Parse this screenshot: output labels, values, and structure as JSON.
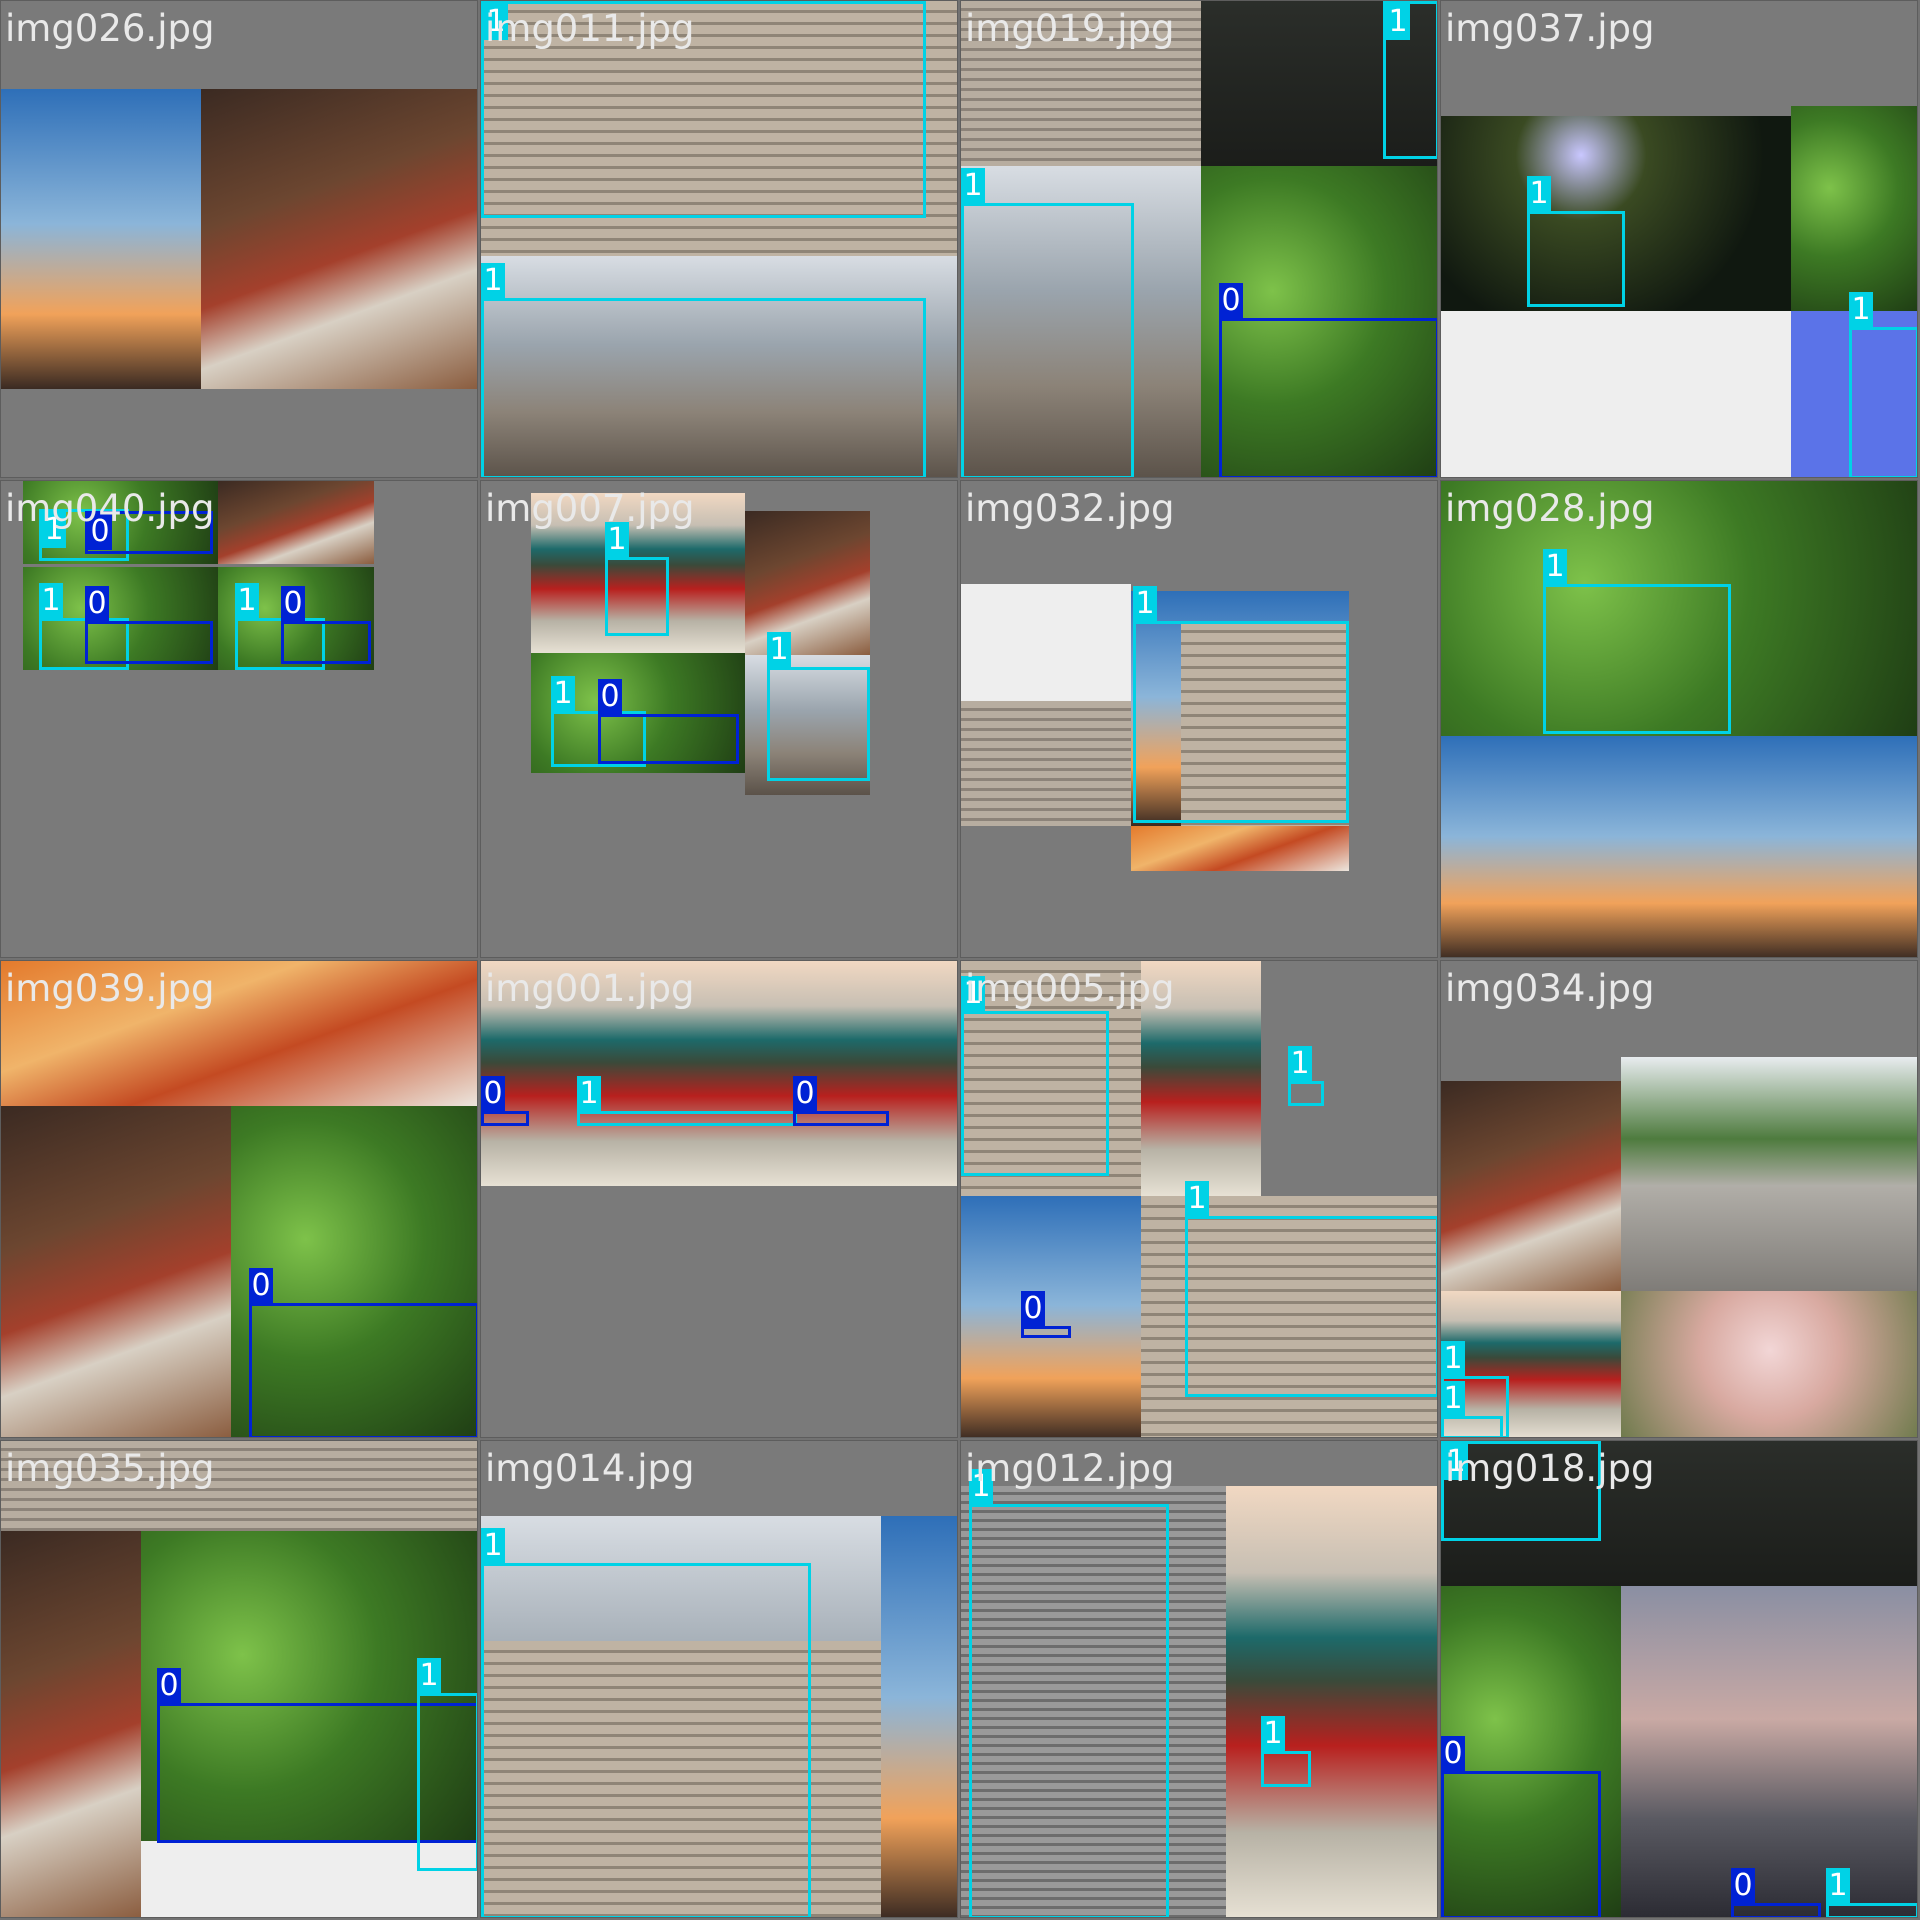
{
  "colors": {
    "class0": "#0022d4",
    "class1": "#00d2e6",
    "label_text": "#ffffff",
    "filename_text": "#e9e9e9",
    "padding_gray": "#7a7a7a"
  },
  "tiles": [
    {
      "name": "img026.jpg",
      "photos": [
        {
          "tex": "p-sky",
          "r": [
            0,
            88,
            478,
            300
          ]
        },
        {
          "tex": "p-hanok",
          "r": [
            200,
            88,
            278,
            300
          ]
        }
      ],
      "boxes": []
    },
    {
      "name": "img011.jpg",
      "photos": [
        {
          "tex": "p-stairs",
          "r": [
            0,
            0,
            478,
            255
          ]
        },
        {
          "tex": "p-street",
          "r": [
            0,
            255,
            478,
            223
          ]
        }
      ],
      "boxes": [
        {
          "c": "1",
          "r": [
            0,
            0,
            445,
            217
          ]
        },
        {
          "c": "1",
          "r": [
            0,
            297,
            445,
            181
          ]
        }
      ]
    },
    {
      "name": "img019.jpg",
      "photos": [
        {
          "tex": "p-stone",
          "r": [
            0,
            0,
            240,
            165
          ]
        },
        {
          "tex": "p-dark",
          "r": [
            240,
            0,
            238,
            165
          ]
        },
        {
          "tex": "p-street",
          "r": [
            0,
            165,
            240,
            313
          ]
        },
        {
          "tex": "p-green",
          "r": [
            240,
            165,
            238,
            313
          ]
        }
      ],
      "boxes": [
        {
          "c": "1",
          "r": [
            422,
            0,
            56,
            158
          ]
        },
        {
          "c": "1",
          "r": [
            0,
            202,
            173,
            276
          ]
        },
        {
          "c": "0",
          "r": [
            258,
            317,
            220,
            161
          ]
        }
      ]
    },
    {
      "name": "img037.jpg",
      "photos": [
        {
          "tex": "p-night",
          "r": [
            0,
            115,
            350,
            195
          ]
        },
        {
          "tex": "p-green",
          "r": [
            350,
            105,
            128,
            205
          ]
        },
        {
          "tex": "p-white",
          "r": [
            0,
            310,
            350,
            168
          ]
        },
        {
          "tex": "p-blue",
          "r": [
            350,
            310,
            128,
            168
          ]
        }
      ],
      "boxes": [
        {
          "c": "1",
          "r": [
            86,
            210,
            98,
            96
          ]
        },
        {
          "c": "1",
          "r": [
            408,
            326,
            70,
            152
          ]
        }
      ]
    },
    {
      "name": "img040.jpg",
      "photos": [
        {
          "tex": "p-green",
          "r": [
            22,
            0,
            195,
            83
          ]
        },
        {
          "tex": "p-hanok",
          "r": [
            217,
            0,
            156,
            83
          ]
        },
        {
          "tex": "p-green",
          "r": [
            22,
            86,
            195,
            103
          ]
        },
        {
          "tex": "p-green",
          "r": [
            217,
            86,
            156,
            103
          ]
        }
      ],
      "boxes": [
        {
          "c": "1",
          "r": [
            38,
            28,
            90,
            52
          ]
        },
        {
          "c": "0",
          "r": [
            84,
            30,
            128,
            43
          ]
        },
        {
          "c": "1",
          "r": [
            38,
            137,
            90,
            52
          ]
        },
        {
          "c": "0",
          "r": [
            84,
            140,
            128,
            43
          ]
        },
        {
          "c": "1",
          "r": [
            234,
            137,
            90,
            52
          ]
        },
        {
          "c": "0",
          "r": [
            280,
            140,
            90,
            43
          ]
        }
      ]
    },
    {
      "name": "img007.jpg",
      "photos": [
        {
          "tex": "p-palace",
          "r": [
            50,
            12,
            214,
            160
          ]
        },
        {
          "tex": "p-hanok",
          "r": [
            264,
            30,
            125,
            144
          ]
        },
        {
          "tex": "p-green",
          "r": [
            50,
            172,
            214,
            120
          ]
        },
        {
          "tex": "p-street",
          "r": [
            264,
            174,
            125,
            140
          ]
        }
      ],
      "boxes": [
        {
          "c": "1",
          "r": [
            124,
            76,
            64,
            79
          ]
        },
        {
          "c": "1",
          "r": [
            70,
            230,
            95,
            56
          ]
        },
        {
          "c": "0",
          "r": [
            117,
            233,
            141,
            50
          ]
        },
        {
          "c": "1",
          "r": [
            286,
            186,
            103,
            114
          ]
        }
      ]
    },
    {
      "name": "img032.jpg",
      "photos": [
        {
          "tex": "p-white",
          "r": [
            0,
            103,
            170,
            240
          ]
        },
        {
          "tex": "p-stone",
          "r": [
            0,
            220,
            170,
            125
          ]
        },
        {
          "tex": "p-sky",
          "r": [
            170,
            110,
            218,
            235
          ]
        },
        {
          "tex": "p-stairs",
          "r": [
            220,
            140,
            168,
            205
          ]
        },
        {
          "tex": "p-autumn",
          "r": [
            170,
            345,
            218,
            45
          ]
        }
      ],
      "boxes": [
        {
          "c": "1",
          "r": [
            172,
            140,
            216,
            202
          ]
        }
      ]
    },
    {
      "name": "img028.jpg",
      "photos": [
        {
          "tex": "p-green",
          "r": [
            0,
            0,
            478,
            255
          ]
        },
        {
          "tex": "p-sky",
          "r": [
            0,
            255,
            478,
            223
          ]
        }
      ],
      "boxes": [
        {
          "c": "1",
          "r": [
            102,
            103,
            188,
            150
          ]
        }
      ]
    },
    {
      "name": "img039.jpg",
      "photos": [
        {
          "tex": "p-autumn",
          "r": [
            0,
            0,
            478,
            145
          ]
        },
        {
          "tex": "p-hanok",
          "r": [
            0,
            145,
            230,
            333
          ]
        },
        {
          "tex": "p-green",
          "r": [
            230,
            145,
            248,
            333
          ]
        }
      ],
      "boxes": [
        {
          "c": "0",
          "r": [
            248,
            342,
            230,
            136
          ]
        }
      ]
    },
    {
      "name": "img001.jpg",
      "photos": [
        {
          "tex": "p-palace",
          "r": [
            0,
            0,
            478,
            225
          ]
        }
      ],
      "boxes": [
        {
          "c": "0",
          "r": [
            0,
            150,
            48,
            15
          ]
        },
        {
          "c": "1",
          "r": [
            96,
            150,
            220,
            15
          ]
        },
        {
          "c": "0",
          "r": [
            312,
            150,
            96,
            15
          ]
        }
      ]
    },
    {
      "name": "img005.jpg",
      "photos": [
        {
          "tex": "p-stairs",
          "r": [
            0,
            0,
            180,
            235
          ]
        },
        {
          "tex": "p-palace",
          "r": [
            180,
            0,
            120,
            235
          ]
        },
        {
          "tex": "p-sky",
          "r": [
            0,
            235,
            180,
            243
          ]
        },
        {
          "tex": "p-stairs",
          "r": [
            180,
            235,
            298,
            243
          ]
        }
      ],
      "boxes": [
        {
          "c": "1",
          "r": [
            0,
            50,
            148,
            165
          ]
        },
        {
          "c": "1",
          "r": [
            327,
            120,
            36,
            25
          ]
        },
        {
          "c": "0",
          "r": [
            60,
            365,
            50,
            12
          ]
        },
        {
          "c": "1",
          "r": [
            224,
            255,
            254,
            181
          ]
        }
      ]
    },
    {
      "name": "img034.jpg",
      "photos": [
        {
          "tex": "p-hanok",
          "r": [
            0,
            120,
            180,
            210
          ]
        },
        {
          "tex": "p-gate",
          "r": [
            180,
            96,
            298,
            234
          ]
        },
        {
          "tex": "p-palace",
          "r": [
            0,
            330,
            180,
            148
          ]
        },
        {
          "tex": "p-pink",
          "r": [
            180,
            330,
            298,
            148
          ]
        }
      ],
      "boxes": [
        {
          "c": "1",
          "r": [
            0,
            415,
            68,
            63
          ]
        },
        {
          "c": "1",
          "r": [
            0,
            455,
            62,
            23
          ]
        }
      ]
    },
    {
      "name": "img035.jpg",
      "photos": [
        {
          "tex": "p-stone",
          "r": [
            0,
            0,
            478,
            90
          ]
        },
        {
          "tex": "p-hanok",
          "r": [
            0,
            90,
            140,
            388
          ]
        },
        {
          "tex": "p-green",
          "r": [
            140,
            90,
            338,
            310
          ]
        },
        {
          "tex": "p-white",
          "r": [
            140,
            400,
            338,
            78
          ]
        }
      ],
      "boxes": [
        {
          "c": "0",
          "r": [
            156,
            262,
            322,
            140
          ]
        },
        {
          "c": "1",
          "r": [
            416,
            252,
            62,
            178
          ]
        }
      ]
    },
    {
      "name": "img014.jpg",
      "photos": [
        {
          "tex": "p-street",
          "r": [
            0,
            75,
            400,
            403
          ]
        },
        {
          "tex": "p-stairs",
          "r": [
            0,
            200,
            400,
            278
          ]
        },
        {
          "tex": "p-sky",
          "r": [
            400,
            75,
            78,
            403
          ]
        }
      ],
      "boxes": [
        {
          "c": "1",
          "r": [
            0,
            122,
            330,
            356
          ]
        }
      ]
    },
    {
      "name": "img012.jpg",
      "photos": [
        {
          "tex": "p-bw",
          "r": [
            0,
            45,
            265,
            433
          ]
        },
        {
          "tex": "p-palace",
          "r": [
            265,
            45,
            213,
            433
          ]
        }
      ],
      "boxes": [
        {
          "c": "1",
          "r": [
            8,
            63,
            200,
            415
          ]
        },
        {
          "c": "1",
          "r": [
            300,
            310,
            50,
            36
          ]
        }
      ]
    },
    {
      "name": "img018.jpg",
      "photos": [
        {
          "tex": "p-dark",
          "r": [
            0,
            0,
            180,
            145
          ]
        },
        {
          "tex": "p-dark",
          "r": [
            180,
            0,
            298,
            145
          ]
        },
        {
          "tex": "p-green",
          "r": [
            0,
            145,
            180,
            333
          ]
        },
        {
          "tex": "p-dusk",
          "r": [
            180,
            145,
            298,
            333
          ]
        }
      ],
      "boxes": [
        {
          "c": "1",
          "r": [
            0,
            0,
            160,
            100
          ]
        },
        {
          "c": "0",
          "r": [
            0,
            330,
            160,
            148
          ]
        },
        {
          "c": "0",
          "r": [
            290,
            462,
            90,
            16
          ]
        },
        {
          "c": "1",
          "r": [
            385,
            462,
            93,
            16
          ]
        }
      ]
    }
  ]
}
